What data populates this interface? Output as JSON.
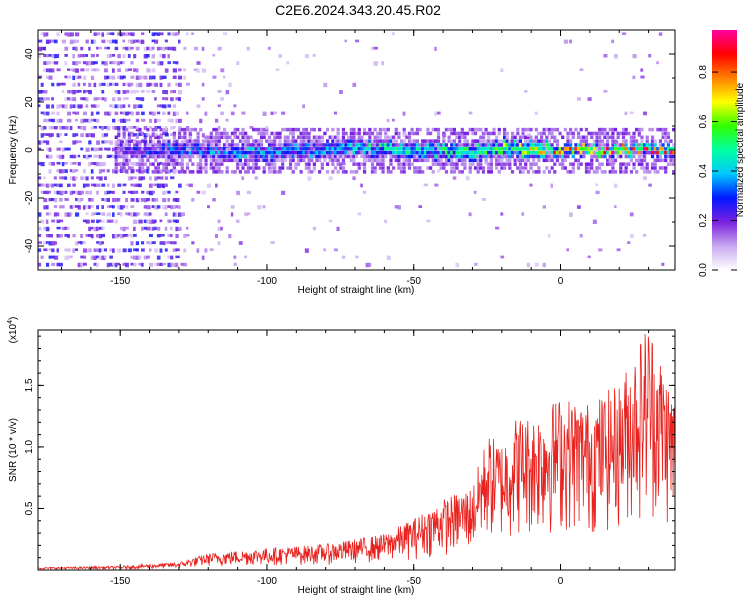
{
  "title": "C2E6.2024.343.20.45.R02",
  "chart_data": [
    {
      "type": "heatmap",
      "xlabel": "Height of straight line (km)",
      "ylabel": "Frequency (Hz)",
      "xlim": [
        -178,
        39
      ],
      "ylim": [
        -50,
        50
      ],
      "xticks": [
        -150,
        -100,
        -50,
        0
      ],
      "yticks": [
        -40,
        -20,
        0,
        20,
        40
      ],
      "colorbar": {
        "label": "Normalized spectral amplitude",
        "range": [
          0.0,
          0.97
        ],
        "ticks": [
          0.0,
          0.2,
          0.4,
          0.6,
          0.8
        ],
        "colors": [
          "#ffffff",
          "#c8a8f0",
          "#7a20e0",
          "#0018ff",
          "#00c8ff",
          "#00ffa0",
          "#30ff00",
          "#ffff00",
          "#ff8000",
          "#ff0000",
          "#ff00a0"
        ]
      },
      "band_profile": {
        "x": [
          -150,
          -130,
          -100,
          -75,
          -50,
          -30,
          -20,
          -10,
          0,
          20,
          38
        ],
        "center_freq": [
          0,
          0,
          -1,
          1,
          0,
          -1,
          1,
          0,
          0,
          0,
          0
        ],
        "peak_amplitude": [
          0.25,
          0.35,
          0.4,
          0.45,
          0.5,
          0.55,
          0.6,
          0.7,
          0.85,
          0.9,
          0.95
        ]
      },
      "noise_region": [
        -178,
        -130
      ]
    },
    {
      "type": "line",
      "xlabel": "Height of straight line (km)",
      "ylabel": "SNR (10 * v/v)",
      "y_multiplier": "(x10",
      "y_multiplier_exp": "4",
      "xlim": [
        -178,
        39
      ],
      "ylim": [
        0,
        19500
      ],
      "xticks": [
        -150,
        -100,
        -50,
        0
      ],
      "yticks": [
        5000,
        10000,
        15000
      ],
      "ytick_labels": [
        "0.5",
        "1.0",
        "1.5"
      ],
      "color": "#e8221e",
      "envelope": {
        "x": [
          -178,
          -150,
          -130,
          -120,
          -100,
          -80,
          -60,
          -50,
          -40,
          -30,
          -25,
          -20,
          -15,
          -10,
          0,
          10,
          20,
          30,
          38
        ],
        "y": [
          200,
          300,
          600,
          1300,
          1700,
          2000,
          2800,
          4000,
          5500,
          6500,
          10500,
          10000,
          12000,
          12000,
          13500,
          13000,
          14500,
          19500,
          14000
        ]
      }
    }
  ]
}
